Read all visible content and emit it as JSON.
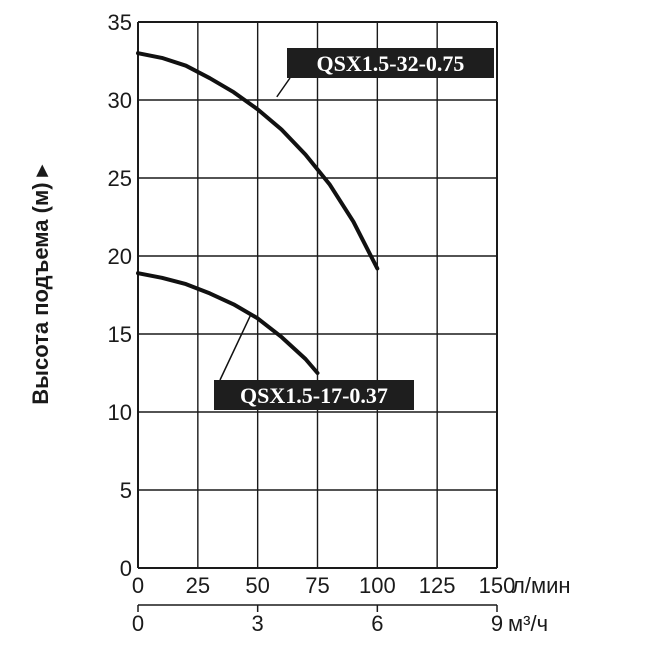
{
  "chart_data": {
    "type": "line",
    "ylabel": "Высота подъема (м) ▸",
    "ylim": [
      0,
      35
    ],
    "yticks": [
      "0",
      "5",
      "10",
      "15",
      "20",
      "25",
      "30",
      "35"
    ],
    "xlim": [
      0,
      150
    ],
    "xticks": [
      "0",
      "25",
      "50",
      "75",
      "100",
      "125",
      "150"
    ],
    "x_unit": "л/мин",
    "x2_ticks": [
      {
        "value": 0,
        "label": "0"
      },
      {
        "value": 3,
        "label": "3"
      },
      {
        "value": 6,
        "label": "6"
      },
      {
        "value": 9,
        "label": "9"
      }
    ],
    "x2_unit": "м³/ч",
    "grid": true,
    "series": [
      {
        "name": "QSX1.5-32-0.75",
        "x": [
          0,
          10,
          20,
          30,
          40,
          50,
          60,
          70,
          80,
          90,
          100
        ],
        "y": [
          33.0,
          32.7,
          32.2,
          31.4,
          30.5,
          29.4,
          28.1,
          26.5,
          24.6,
          22.2,
          19.2
        ]
      },
      {
        "name": "QSX1.5-17-0.37",
        "x": [
          0,
          10,
          20,
          30,
          40,
          50,
          60,
          70,
          75
        ],
        "y": [
          18.9,
          18.6,
          18.2,
          17.6,
          16.9,
          16.0,
          14.8,
          13.4,
          12.5
        ]
      }
    ]
  }
}
